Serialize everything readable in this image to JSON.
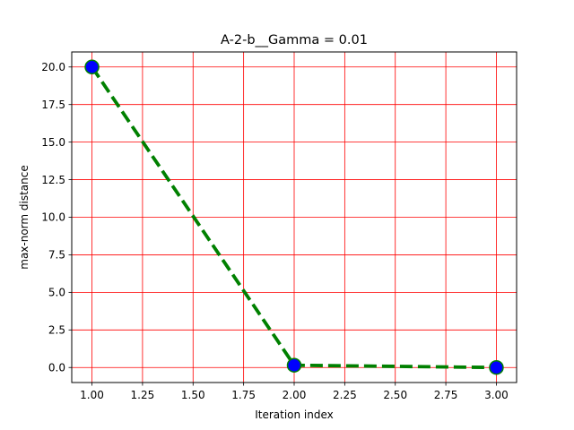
{
  "chart_data": {
    "type": "line",
    "title": "A-2-b__Gamma = 0.01",
    "xlabel": "Iteration index",
    "ylabel": "max-norm distance",
    "x": [
      1.0,
      2.0,
      3.0
    ],
    "series": [
      {
        "values": [
          20.0,
          0.15,
          0.0
        ],
        "line_color": "#008000",
        "line_style": "dashed",
        "marker": "circle",
        "marker_color": "#0000ff"
      }
    ],
    "xlim": [
      0.9,
      3.1
    ],
    "ylim": [
      -1.0,
      21.0
    ],
    "xticks": [
      1.0,
      1.25,
      1.5,
      1.75,
      2.0,
      2.25,
      2.5,
      2.75,
      3.0
    ],
    "xtick_labels": [
      "1.00",
      "1.25",
      "1.50",
      "1.75",
      "2.00",
      "2.25",
      "2.50",
      "2.75",
      "3.00"
    ],
    "yticks": [
      0.0,
      2.5,
      5.0,
      7.5,
      10.0,
      12.5,
      15.0,
      17.5,
      20.0
    ],
    "ytick_labels": [
      "0.0",
      "2.5",
      "5.0",
      "7.5",
      "10.0",
      "12.5",
      "15.0",
      "17.5",
      "20.0"
    ],
    "grid": true,
    "grid_color": "#ff0000"
  }
}
